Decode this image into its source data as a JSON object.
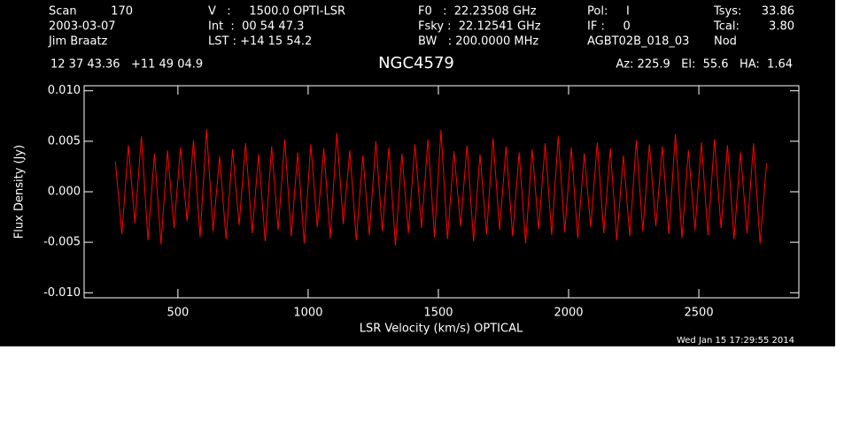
{
  "chart_data": {
    "type": "line",
    "title": "NGC4579",
    "header": [
      [
        "Scan",
        "170",
        "V   :     1500.0 OPTI-LSR",
        "F0   :  22.23508 GHz",
        "Pol:     I",
        "Tsys:",
        "33.86"
      ],
      [
        "2003-03-07",
        "",
        "Int  :  00 54 47.3",
        "Fsky :  22.12541 GHz",
        "IF :     0",
        "Tcal:",
        "3.80"
      ],
      [
        "Jim Braatz",
        "",
        "LST : +14 15 54.2",
        "BW   : 200.0000 MHz",
        "AGBT02B_018_03",
        "Nod",
        ""
      ]
    ],
    "coordinates": "12 37 43.36   +11 49 04.9",
    "pointing": "Az: 225.9   El:  55.6   HA:  1.64",
    "timestamp": "Wed Jan 15 17:29:55 2014",
    "x_label": "LSR Velocity (km/s) OPTICAL",
    "y_label": "Flux Density (Jy)",
    "x": [
      260,
      285,
      310,
      335,
      360,
      385,
      410,
      435,
      460,
      485,
      510,
      535,
      560,
      585,
      610,
      635,
      660,
      685,
      710,
      735,
      760,
      785,
      810,
      835,
      860,
      885,
      910,
      935,
      960,
      985,
      1010,
      1035,
      1060,
      1085,
      1110,
      1135,
      1160,
      1185,
      1210,
      1235,
      1260,
      1285,
      1310,
      1335,
      1360,
      1385,
      1410,
      1435,
      1460,
      1485,
      1510,
      1535,
      1560,
      1585,
      1610,
      1635,
      1660,
      1685,
      1710,
      1735,
      1760,
      1785,
      1810,
      1835,
      1860,
      1885,
      1910,
      1935,
      1960,
      1985,
      2010,
      2035,
      2060,
      2085,
      2110,
      2135,
      2160,
      2185,
      2210,
      2235,
      2260,
      2285,
      2310,
      2335,
      2360,
      2385,
      2410,
      2435,
      2460,
      2485,
      2510,
      2535,
      2560,
      2585,
      2610,
      2635,
      2660,
      2685,
      2710,
      2735,
      2760
    ],
    "series": [
      {
        "color": "#ff0000",
        "values": [
          0.003,
          -0.0042,
          0.0046,
          -0.0031,
          0.0055,
          -0.0048,
          0.0038,
          -0.0052,
          0.0041,
          -0.0036,
          0.0044,
          -0.0029,
          0.0051,
          -0.0045,
          0.0062,
          -0.0039,
          0.0035,
          -0.0047,
          0.0042,
          -0.0033,
          0.0048,
          -0.0041,
          0.0037,
          -0.0049,
          0.0045,
          -0.0038,
          0.0052,
          -0.0044,
          0.0039,
          -0.0051,
          0.0047,
          -0.0035,
          0.0043,
          -0.0046,
          0.0058,
          -0.0032,
          0.0041,
          -0.0048,
          0.0036,
          -0.0043,
          0.005,
          -0.0039,
          0.0044,
          -0.0053,
          0.0038,
          -0.0041,
          0.0047,
          -0.0036,
          0.0052,
          -0.0045,
          0.0061,
          -0.0047,
          0.004,
          -0.0034,
          0.0046,
          -0.0049,
          0.0037,
          -0.0042,
          0.0053,
          -0.0038,
          0.0045,
          -0.0044,
          0.0039,
          -0.0051,
          0.0042,
          -0.0037,
          0.0048,
          -0.0043,
          0.0055,
          -0.004,
          0.0044,
          -0.0046,
          0.0038,
          -0.0035,
          0.0049,
          -0.0041,
          0.0043,
          -0.0048,
          0.0036,
          -0.0044,
          0.0051,
          -0.0039,
          0.0047,
          -0.0034,
          0.0045,
          -0.0042,
          0.0057,
          -0.0046,
          0.0041,
          -0.0038,
          0.0049,
          -0.0043,
          0.0052,
          -0.0036,
          0.0046,
          -0.0047,
          0.0039,
          -0.0041,
          0.0048,
          -0.0051,
          0.0028
        ]
      }
    ],
    "xlim": [
      140,
      2884
    ],
    "ylim": [
      -0.0105,
      0.0105
    ],
    "xticks": [
      500,
      1000,
      1500,
      2000,
      2500
    ],
    "yticks": [
      {
        "value": -0.01,
        "label": "-0.010"
      },
      {
        "value": -0.005,
        "label": "-0.005"
      },
      {
        "value": 0,
        "label": "0.000"
      },
      {
        "value": 0.005,
        "label": "0.005"
      },
      {
        "value": 0.01,
        "label": "0.010"
      }
    ]
  }
}
